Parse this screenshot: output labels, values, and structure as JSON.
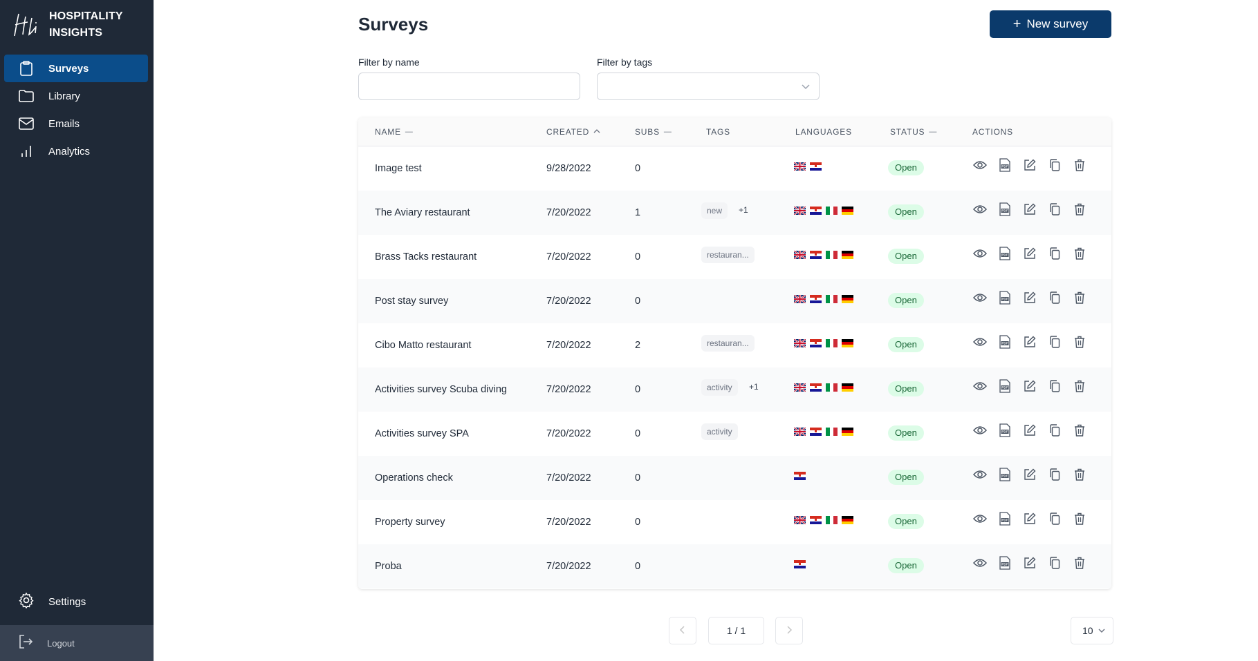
{
  "brand": {
    "line1": "HOSPITALITY",
    "line2": "INSIGHTS"
  },
  "sidebar": {
    "items": [
      {
        "label": "Surveys",
        "icon": "clipboard-icon",
        "active": true
      },
      {
        "label": "Library",
        "icon": "folder-icon",
        "active": false
      },
      {
        "label": "Emails",
        "icon": "envelope-icon",
        "active": false
      },
      {
        "label": "Analytics",
        "icon": "bar-chart-icon",
        "active": false
      }
    ],
    "settings_label": "Settings",
    "logout_label": "Logout"
  },
  "header": {
    "title": "Surveys",
    "new_button": "New survey"
  },
  "filters": {
    "name_label": "Filter by name",
    "name_value": "",
    "tags_label": "Filter by tags",
    "tags_value": ""
  },
  "table": {
    "columns": {
      "name": "NAME",
      "created": "CREATED",
      "subs": "SUBS",
      "tags": "TAGS",
      "languages": "LANGUAGES",
      "status": "STATUS",
      "actions": "ACTIONS"
    },
    "rows": [
      {
        "name": "Image test",
        "created": "9/28/2022",
        "subs": "0",
        "tags": [],
        "more": "",
        "langs": [
          "gb",
          "hr"
        ],
        "status": "Open"
      },
      {
        "name": "The Aviary restaurant",
        "created": "7/20/2022",
        "subs": "1",
        "tags": [
          "new"
        ],
        "more": "+1",
        "langs": [
          "gb",
          "hr",
          "it",
          "de"
        ],
        "status": "Open"
      },
      {
        "name": "Brass Tacks restaurant",
        "created": "7/20/2022",
        "subs": "0",
        "tags": [
          "restauran..."
        ],
        "more": "",
        "langs": [
          "gb",
          "hr",
          "it",
          "de"
        ],
        "status": "Open"
      },
      {
        "name": "Post stay survey",
        "created": "7/20/2022",
        "subs": "0",
        "tags": [],
        "more": "",
        "langs": [
          "gb",
          "hr",
          "it",
          "de"
        ],
        "status": "Open"
      },
      {
        "name": "Cibo Matto restaurant",
        "created": "7/20/2022",
        "subs": "2",
        "tags": [
          "restauran..."
        ],
        "more": "",
        "langs": [
          "gb",
          "hr",
          "it",
          "de"
        ],
        "status": "Open"
      },
      {
        "name": "Activities survey Scuba diving",
        "created": "7/20/2022",
        "subs": "0",
        "tags": [
          "activity"
        ],
        "more": "+1",
        "langs": [
          "gb",
          "hr",
          "it",
          "de"
        ],
        "status": "Open"
      },
      {
        "name": "Activities survey SPA",
        "created": "7/20/2022",
        "subs": "0",
        "tags": [
          "activity"
        ],
        "more": "",
        "langs": [
          "gb",
          "hr",
          "it",
          "de"
        ],
        "status": "Open"
      },
      {
        "name": "Operations check",
        "created": "7/20/2022",
        "subs": "0",
        "tags": [],
        "more": "",
        "langs": [
          "hr"
        ],
        "status": "Open"
      },
      {
        "name": "Property survey",
        "created": "7/20/2022",
        "subs": "0",
        "tags": [],
        "more": "",
        "langs": [
          "gb",
          "hr",
          "it",
          "de"
        ],
        "status": "Open"
      },
      {
        "name": "Proba",
        "created": "7/20/2022",
        "subs": "0",
        "tags": [],
        "more": "",
        "langs": [
          "hr"
        ],
        "status": "Open"
      }
    ]
  },
  "pagination": {
    "page_label": "1 / 1",
    "page_size": "10"
  },
  "colors": {
    "sidebar_bg": "#1f2937",
    "accent": "#0b3a6b",
    "active_nav": "#0b4d8a",
    "status_bg": "#dcfce7",
    "status_text": "#166534"
  }
}
